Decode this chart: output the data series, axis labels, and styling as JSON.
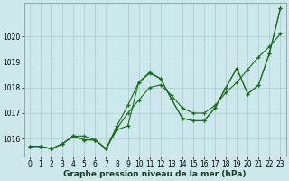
{
  "xlabel": "Graphe pression niveau de la mer (hPa)",
  "bg_color": "#cce8ec",
  "grid_color": "#aacccc",
  "line_color": "#1a6b1a",
  "xlim": [
    -0.5,
    23.5
  ],
  "ylim": [
    1015.3,
    1021.3
  ],
  "yticks": [
    1016,
    1017,
    1018,
    1019,
    1020
  ],
  "xticks": [
    0,
    1,
    2,
    3,
    4,
    5,
    6,
    7,
    8,
    9,
    10,
    11,
    12,
    13,
    14,
    15,
    16,
    17,
    18,
    19,
    20,
    21,
    22,
    23
  ],
  "series1_x": [
    0,
    1,
    2,
    3,
    4,
    5,
    6,
    7,
    8,
    9,
    10,
    11,
    12,
    13,
    14,
    15,
    16,
    17,
    18,
    19,
    20,
    21,
    22,
    23
  ],
  "series1_y": [
    1015.7,
    1015.7,
    1015.6,
    1015.8,
    1016.1,
    1016.1,
    1015.95,
    1015.6,
    1016.4,
    1017.0,
    1017.5,
    1018.0,
    1018.1,
    1017.7,
    1017.2,
    1017.0,
    1017.0,
    1017.3,
    1017.8,
    1018.2,
    1018.7,
    1019.2,
    1019.6,
    1020.1
  ],
  "series2_x": [
    0,
    1,
    2,
    3,
    4,
    5,
    6,
    7,
    8,
    9,
    10,
    11,
    12,
    13,
    14,
    15,
    16,
    17,
    18,
    19,
    20,
    21,
    22,
    23
  ],
  "series2_y": [
    1015.7,
    1015.7,
    1015.6,
    1015.8,
    1016.1,
    1015.95,
    1015.95,
    1015.6,
    1016.5,
    1017.3,
    1018.2,
    1018.55,
    1018.35,
    1017.55,
    1016.8,
    1016.7,
    1016.7,
    1017.2,
    1018.0,
    1018.75,
    1017.75,
    1018.1,
    1019.35,
    1021.1
  ],
  "series3_x": [
    0,
    1,
    2,
    3,
    4,
    5,
    6,
    7,
    8,
    9,
    10,
    11,
    12,
    13,
    14,
    15,
    16,
    17,
    18,
    19,
    20,
    21,
    22,
    23
  ],
  "series3_y": [
    1015.7,
    1015.7,
    1015.6,
    1015.8,
    1016.1,
    1015.95,
    1015.95,
    1015.6,
    1016.35,
    1016.5,
    1018.2,
    1018.6,
    1018.35,
    1017.55,
    1016.8,
    1016.7,
    1016.7,
    1017.2,
    1018.0,
    1018.75,
    1017.75,
    1018.1,
    1019.35,
    1021.1
  ],
  "axis_fontsize": 6.5,
  "tick_fontsize": 5.5
}
